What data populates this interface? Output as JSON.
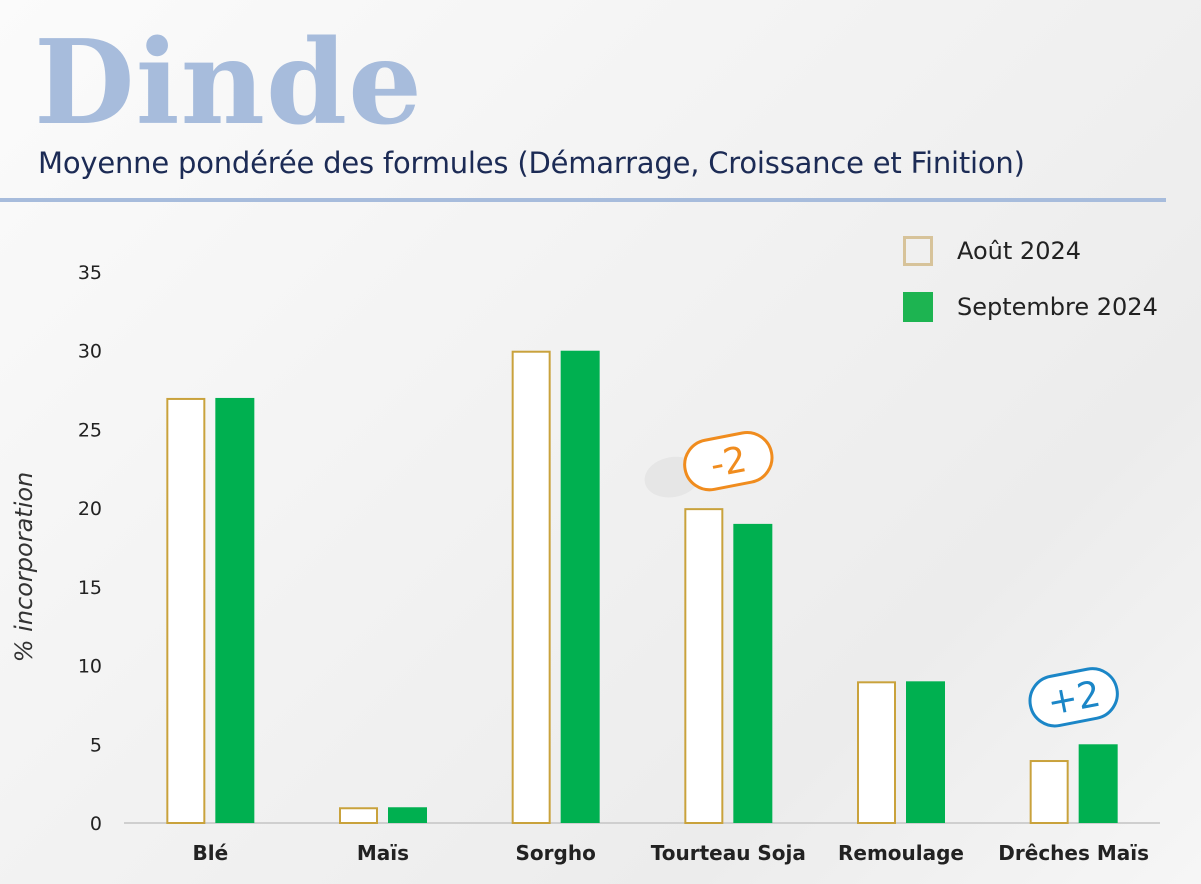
{
  "header": {
    "title": "Dinde",
    "subtitle": "Moyenne pondérée des formules (Démarrage, Croissance et Finition)"
  },
  "colors": {
    "series_outline": "#c9a23c",
    "series_fill": "#00b050",
    "badge_negative": "#f08c1e",
    "badge_positive": "#1b86c7",
    "title": "#a7bcdc",
    "subtitle": "#1c2b55"
  },
  "chart_data": {
    "type": "bar",
    "title": "",
    "xlabel": "",
    "ylabel": "% incorporation",
    "ylim": [
      0,
      35
    ],
    "yticks": [
      "0",
      "5",
      "10",
      "15",
      "20",
      "25",
      "30",
      "35"
    ],
    "categories": [
      "Blé",
      "Maïs",
      "Sorgho",
      "Tourteau Soja",
      "Remoulage",
      "Drêches Maïs"
    ],
    "series": [
      {
        "name": "Août 2024",
        "style": "outline",
        "values": [
          27,
          1,
          30,
          20,
          9,
          4
        ]
      },
      {
        "name": "Septembre 2024",
        "style": "filled",
        "values": [
          27,
          1,
          30,
          19,
          9,
          5
        ]
      }
    ],
    "annotations": [
      {
        "category": "Tourteau Soja",
        "text": "-2",
        "tone": "negative"
      },
      {
        "category": "Drêches Maïs",
        "text": "+2",
        "tone": "positive"
      }
    ],
    "grid": false,
    "legend_position": "top-right"
  }
}
